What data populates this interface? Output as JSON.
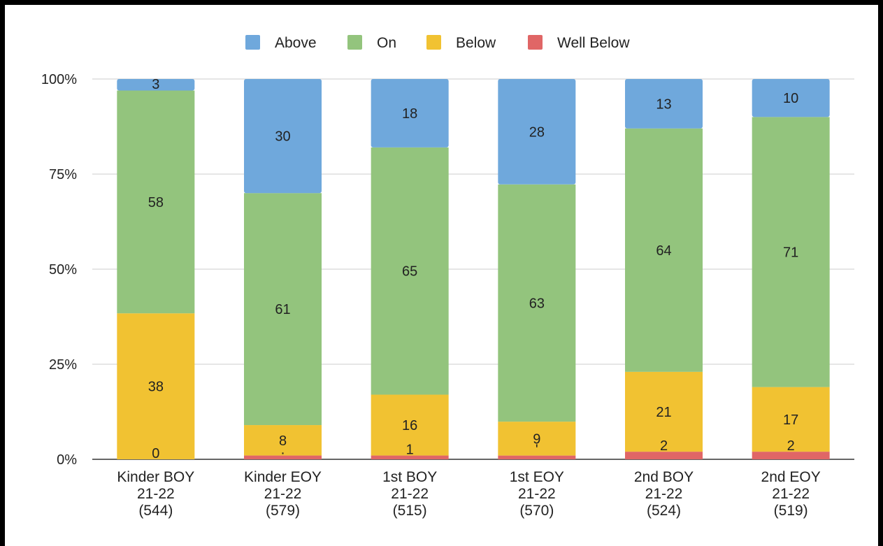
{
  "chart_data": {
    "type": "bar",
    "stacked": true,
    "normalized": true,
    "categories": [
      [
        "Kinder BOY",
        "21-22",
        "(544)"
      ],
      [
        "Kinder EOY",
        "21-22",
        "(579)"
      ],
      [
        "1st BOY",
        "21-22",
        "(515)"
      ],
      [
        "1st EOY",
        "21-22",
        "(570)"
      ],
      [
        "2nd BOY",
        "21-22",
        "(524)"
      ],
      [
        "2nd EOY",
        "21-22",
        "(519)"
      ]
    ],
    "series": [
      {
        "name": "Well Below",
        "color": "#e06666",
        "values": [
          0,
          1,
          1,
          1,
          2,
          2
        ],
        "labels": [
          "0",
          ".",
          "1",
          "'",
          "2",
          "2"
        ]
      },
      {
        "name": "Below",
        "color": "#f1c232",
        "values": [
          38,
          8,
          16,
          9,
          21,
          17
        ],
        "labels": [
          "38",
          "8",
          "16",
          "9",
          "21",
          "17"
        ]
      },
      {
        "name": "On",
        "color": "#93c47d",
        "values": [
          58,
          61,
          65,
          63,
          64,
          71
        ],
        "labels": [
          "58",
          "61",
          "65",
          "63",
          "64",
          "71"
        ]
      },
      {
        "name": "Above",
        "color": "#6fa8dc",
        "values": [
          3,
          30,
          18,
          28,
          13,
          10
        ],
        "labels": [
          "3",
          "30",
          "18",
          "28",
          "13",
          "10"
        ]
      }
    ],
    "legend_order": [
      "Above",
      "On",
      "Below",
      "Well Below"
    ],
    "y_ticks": [
      "0%",
      "25%",
      "50%",
      "75%",
      "100%"
    ],
    "ylim": [
      0,
      100
    ],
    "grid": true,
    "legend_position": "top"
  }
}
